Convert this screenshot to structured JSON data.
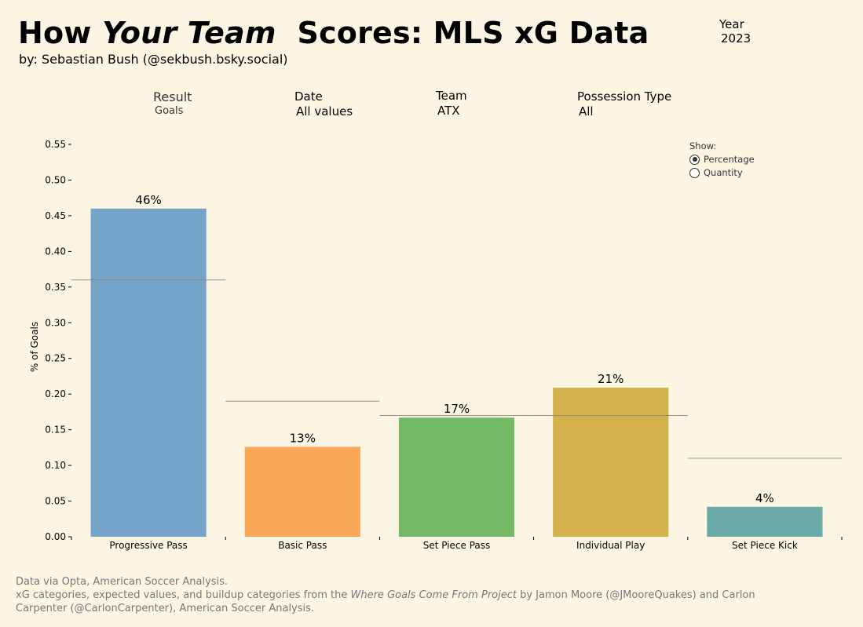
{
  "header": {
    "title_part1": "How",
    "title_italic": "Your Team",
    "title_part2": "Scores: MLS xG Data",
    "byline": "by: Sebastian Bush (@sekbush.bsky.social)",
    "year_label": "Year",
    "year_value": "2023"
  },
  "filters": {
    "result": {
      "label": "Result",
      "value": "Goals"
    },
    "date": {
      "label": "Date",
      "value": "All values"
    },
    "team": {
      "label": "Team",
      "value": "ATX"
    },
    "possession": {
      "label": "Possession Type",
      "value": "All"
    }
  },
  "show_toggle": {
    "label": "Show:",
    "options": [
      "Percentage",
      "Quantity"
    ],
    "selected": "Percentage"
  },
  "colors": {
    "bars": [
      "#76a3c8",
      "#f9a857",
      "#74ba66",
      "#d4b24b",
      "#6aaba7"
    ],
    "reference_line": "#8a8478"
  },
  "chart_data": {
    "type": "bar",
    "title": "",
    "xlabel": "",
    "ylabel": "% of Goals",
    "categories": [
      "Progressive Pass",
      "Basic Pass",
      "Set Piece Pass",
      "Individual Play",
      "Set Piece Kick"
    ],
    "values": [
      0.46,
      0.126,
      0.167,
      0.209,
      0.042
    ],
    "data_labels": [
      "46%",
      "13%",
      "17%",
      "21%",
      "4%"
    ],
    "league_reference": [
      0.36,
      0.19,
      0.17,
      0.17,
      0.11
    ],
    "yticks": [
      "0.00",
      "0.05",
      "0.10",
      "0.15",
      "0.20",
      "0.25",
      "0.30",
      "0.35",
      "0.40",
      "0.45",
      "0.50",
      "0.55"
    ],
    "ylim": [
      0,
      0.55
    ],
    "grid": false
  },
  "footer": {
    "line1": "Data via Opta, American Soccer Analysis.",
    "line2_prefix": "xG categories, expected values, and buildup categories from the ",
    "line2_italic": "Where Goals Come From Project",
    "line2_suffix": " by Jamon Moore (@JMooreQuakes) and Carlon Carpenter (@CarlonCarpenter), American Soccer Analysis."
  }
}
